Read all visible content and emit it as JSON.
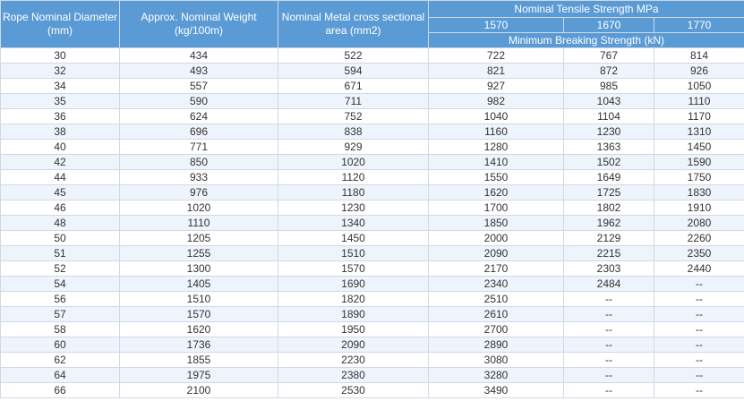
{
  "headers": {
    "col1": "Rope Nominal Diameter (mm)",
    "col2": "Approx. Nominal Weight (kg/100m)",
    "col3": "Nominal Metal cross sectional area (mm2)",
    "tensile_group": "Nominal Tensile Strength MPa",
    "grade_1570": "1570",
    "grade_1670": "1670",
    "grade_1770": "1770",
    "breaking_strength": "Minimum Breaking Strength  (kN)"
  },
  "rows": [
    [
      "30",
      "434",
      "522",
      "722",
      "767",
      "814"
    ],
    [
      "32",
      "493",
      "594",
      "821",
      "872",
      "926"
    ],
    [
      "34",
      "557",
      "671",
      "927",
      "985",
      "1050"
    ],
    [
      "35",
      "590",
      "711",
      "982",
      "1043",
      "1110"
    ],
    [
      "36",
      "624",
      "752",
      "1040",
      "1104",
      "1170"
    ],
    [
      "38",
      "696",
      "838",
      "1160",
      "1230",
      "1310"
    ],
    [
      "40",
      "771",
      "929",
      "1280",
      "1363",
      "1450"
    ],
    [
      "42",
      "850",
      "1020",
      "1410",
      "1502",
      "1590"
    ],
    [
      "44",
      "933",
      "1120",
      "1550",
      "1649",
      "1750"
    ],
    [
      "45",
      "976",
      "1180",
      "1620",
      "1725",
      "1830"
    ],
    [
      "46",
      "1020",
      "1230",
      "1700",
      "1802",
      "1910"
    ],
    [
      "48",
      "1110",
      "1340",
      "1850",
      "1962",
      "2080"
    ],
    [
      "50",
      "1205",
      "1450",
      "2000",
      "2129",
      "2260"
    ],
    [
      "51",
      "1255",
      "1510",
      "2090",
      "2215",
      "2350"
    ],
    [
      "52",
      "1300",
      "1570",
      "2170",
      "2303",
      "2440"
    ],
    [
      "54",
      "1405",
      "1690",
      "2340",
      "2484",
      "--"
    ],
    [
      "56",
      "1510",
      "1820",
      "2510",
      "--",
      "--"
    ],
    [
      "57",
      "1570",
      "1890",
      "2610",
      "--",
      "--"
    ],
    [
      "58",
      "1620",
      "1950",
      "2700",
      "--",
      "--"
    ],
    [
      "60",
      "1736",
      "2090",
      "2890",
      "--",
      "--"
    ],
    [
      "62",
      "1855",
      "2230",
      "3080",
      "--",
      "--"
    ],
    [
      "64",
      "1975",
      "2380",
      "3280",
      "--",
      "--"
    ],
    [
      "66",
      "2100",
      "2530",
      "3490",
      "--",
      "--"
    ]
  ]
}
